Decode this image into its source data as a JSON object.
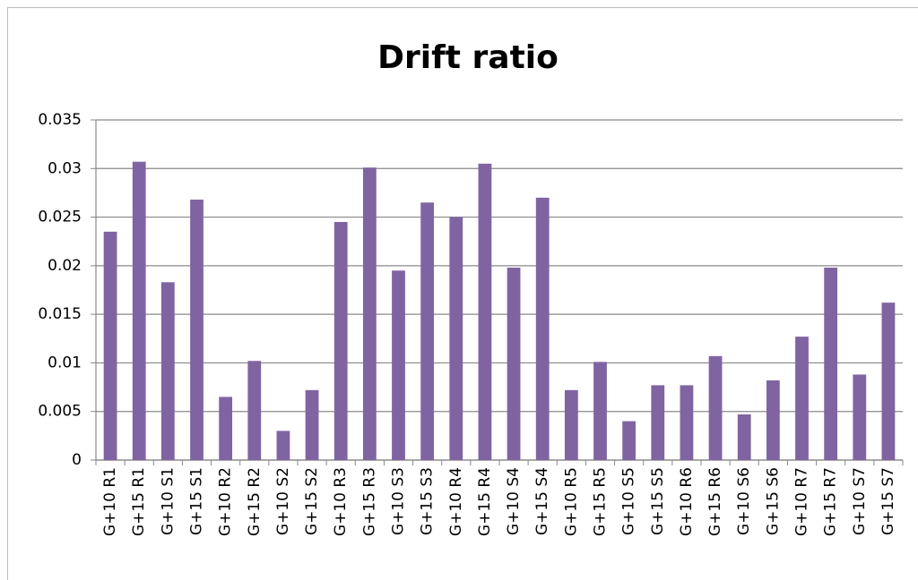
{
  "chart_data": {
    "type": "bar",
    "title": "Drift ratio",
    "categories": [
      "G+10 R1",
      "G+15 R1",
      "G+10 S1",
      "G+15 S1",
      "G+10 R2",
      "G+15 R2",
      "G+10 S2",
      "G+15 S2",
      "G+10 R3",
      "G+15 R3",
      "G+10 S3",
      "G+15 S3",
      "G+10 R4",
      "G+15 R4",
      "G+10 S4",
      "G+15 S4",
      "G+10 R5",
      "G+15 R5",
      "G+10 S5",
      "G+15 S5",
      "G+10 R6",
      "G+15 R6",
      "G+10 S6",
      "G+15 S6",
      "G+10 R7",
      "G+15 R7",
      "G+10 S7",
      "G+15 S7"
    ],
    "values": [
      0.0235,
      0.0307,
      0.0183,
      0.0268,
      0.0065,
      0.0102,
      0.003,
      0.0072,
      0.0245,
      0.0301,
      0.0195,
      0.0265,
      0.025,
      0.0305,
      0.0198,
      0.027,
      0.0072,
      0.0101,
      0.004,
      0.0077,
      0.0077,
      0.0107,
      0.0047,
      0.0082,
      0.0127,
      0.0198,
      0.0088,
      0.0162
    ],
    "color": "#8064a2",
    "ylim": [
      0,
      0.035
    ],
    "yticks": [
      0,
      0.005,
      0.01,
      0.015,
      0.02,
      0.025,
      0.03,
      0.035
    ],
    "grid": true
  }
}
